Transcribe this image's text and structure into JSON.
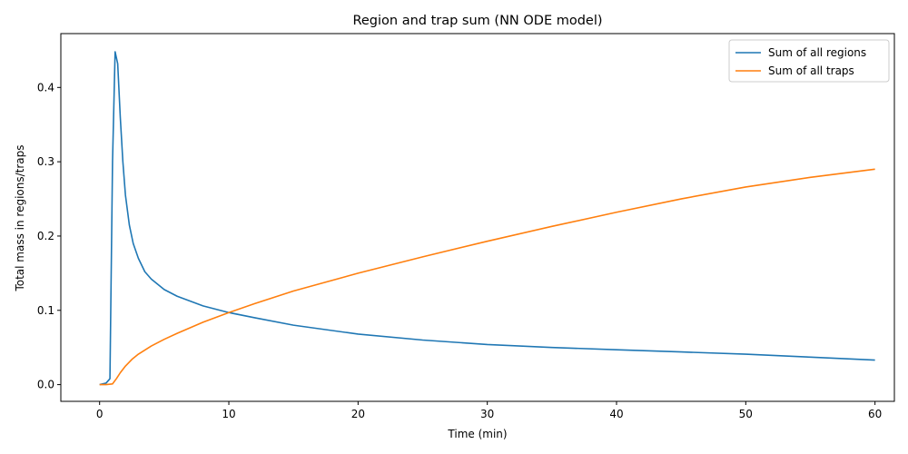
{
  "chart_data": {
    "type": "line",
    "title": "Region and trap sum (NN ODE model)",
    "xlabel": "Time (min)",
    "ylabel": "Total mass in regions/traps",
    "xlim": [
      -3,
      61.5
    ],
    "ylim": [
      -0.0225,
      0.4725
    ],
    "xticks": [
      0,
      10,
      20,
      30,
      40,
      50,
      60
    ],
    "yticks": [
      0.0,
      0.1,
      0.2,
      0.3,
      0.4
    ],
    "xtick_labels": [
      "0",
      "10",
      "20",
      "30",
      "40",
      "50",
      "60"
    ],
    "ytick_labels": [
      "0.0",
      "0.1",
      "0.2",
      "0.3",
      "0.4"
    ],
    "grid": false,
    "legend_position": "upper right",
    "series": [
      {
        "name": "Sum of all regions",
        "color": "#1f77b4",
        "x": [
          0,
          0.5,
          0.8,
          1.0,
          1.2,
          1.4,
          1.6,
          1.8,
          2.0,
          2.3,
          2.6,
          3.0,
          3.5,
          4.0,
          5.0,
          6.0,
          8.0,
          10.0,
          12.0,
          15.0,
          20.0,
          25.0,
          30.0,
          35.0,
          40.0,
          45.0,
          50.0,
          55.0,
          60.0
        ],
        "y": [
          0.0,
          0.002,
          0.008,
          0.3,
          0.448,
          0.432,
          0.36,
          0.3,
          0.255,
          0.215,
          0.19,
          0.17,
          0.152,
          0.142,
          0.128,
          0.119,
          0.106,
          0.097,
          0.09,
          0.08,
          0.068,
          0.06,
          0.054,
          0.05,
          0.047,
          0.044,
          0.041,
          0.037,
          0.033
        ]
      },
      {
        "name": "Sum of all traps",
        "color": "#ff7f0e",
        "x": [
          0,
          0.5,
          1.0,
          1.3,
          1.6,
          2.0,
          2.5,
          3.0,
          4.0,
          5.0,
          6.0,
          8.0,
          10.0,
          12.0,
          15.0,
          20.0,
          25.0,
          30.0,
          35.0,
          40.0,
          45.0,
          50.0,
          55.0,
          60.0
        ],
        "y": [
          0.0,
          0.0,
          0.001,
          0.008,
          0.016,
          0.025,
          0.034,
          0.041,
          0.052,
          0.061,
          0.069,
          0.084,
          0.097,
          0.109,
          0.126,
          0.15,
          0.172,
          0.193,
          0.213,
          0.232,
          0.25,
          0.266,
          0.279,
          0.29
        ]
      }
    ]
  }
}
